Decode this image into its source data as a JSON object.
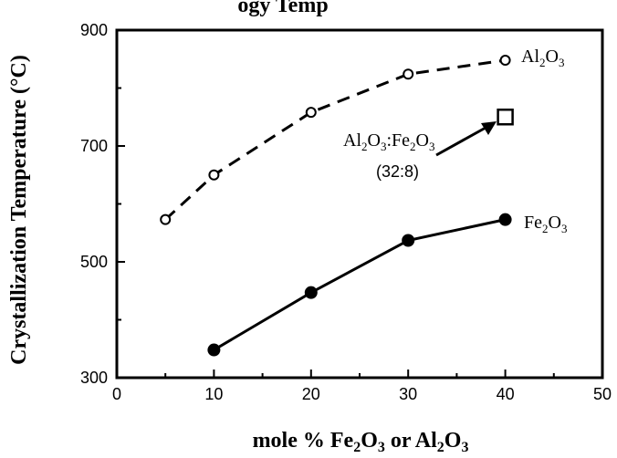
{
  "chart_data": {
    "type": "line",
    "title_fragment": "ogy Temp",
    "xlabel": {
      "main": "mole % Fe",
      "sub1": "2",
      "mid1": "O",
      "sub2": "3",
      "mid2": " or Al",
      "sub3": "2",
      "mid3": "O",
      "sub4": "3"
    },
    "ylabel": "Crystallization Temperature (°C)",
    "xlim": [
      0,
      50
    ],
    "ylim": [
      300,
      900
    ],
    "xticks": [
      0,
      10,
      20,
      30,
      40,
      50
    ],
    "yticks": [
      300,
      500,
      700,
      900
    ],
    "grid": false,
    "series": [
      {
        "name": {
          "base": "Al",
          "sub1": "2",
          "mid": "O",
          "sub2": "3"
        },
        "style": "dashed",
        "marker": "open-circle",
        "x": [
          5,
          10,
          20,
          30,
          40
        ],
        "y": [
          573,
          650,
          758,
          824,
          848
        ]
      },
      {
        "name": {
          "base": "Fe",
          "sub1": "2",
          "mid": "O",
          "sub2": "3"
        },
        "style": "solid",
        "marker": "filled-circle",
        "x": [
          10,
          20,
          30,
          40
        ],
        "y": [
          348,
          447,
          537,
          573
        ]
      }
    ],
    "points": [
      {
        "name": {
          "a": "Al",
          "s1": "2",
          "b": "O",
          "s2": "3",
          "c": ":Fe",
          "s3": "2",
          "d": "O",
          "s4": "3"
        },
        "ratio": "(32:8)",
        "marker": "open-square",
        "x": 40,
        "y": 750
      }
    ]
  }
}
